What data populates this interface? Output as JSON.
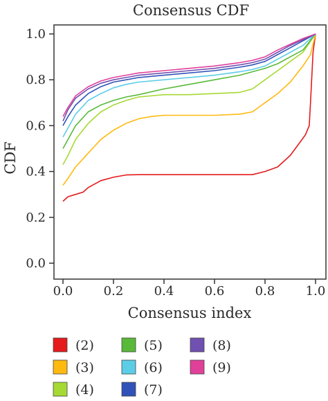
{
  "chart_data": {
    "type": "line",
    "title": "Consensus CDF",
    "xlabel": "Consensus index",
    "ylabel": "CDF",
    "xlim": [
      0,
      1
    ],
    "ylim": [
      0,
      1
    ],
    "xticks": [
      "0.0",
      "0.2",
      "0.4",
      "0.6",
      "0.8",
      "1.0"
    ],
    "yticks": [
      "0.0",
      "0.2",
      "0.4",
      "0.6",
      "0.8",
      "1.0"
    ],
    "grid": false,
    "legend": "bottom",
    "series": [
      {
        "name": "(2)",
        "color": "#e41a1c",
        "x": [
          0.0,
          0.02,
          0.05,
          0.08,
          0.1,
          0.15,
          0.2,
          0.25,
          0.3,
          0.4,
          0.5,
          0.6,
          0.7,
          0.75,
          0.8,
          0.85,
          0.9,
          0.94,
          0.96,
          0.975,
          0.98,
          0.99,
          1.0
        ],
        "y": [
          0.27,
          0.29,
          0.3,
          0.31,
          0.33,
          0.36,
          0.375,
          0.385,
          0.386,
          0.386,
          0.386,
          0.386,
          0.386,
          0.386,
          0.4,
          0.42,
          0.47,
          0.53,
          0.56,
          0.6,
          0.7,
          0.92,
          1.0
        ]
      },
      {
        "name": "(3)",
        "color": "#ffb90f",
        "x": [
          0.0,
          0.02,
          0.05,
          0.1,
          0.15,
          0.2,
          0.25,
          0.3,
          0.35,
          0.4,
          0.5,
          0.6,
          0.7,
          0.75,
          0.8,
          0.85,
          0.9,
          0.95,
          0.98,
          1.0
        ],
        "y": [
          0.34,
          0.37,
          0.42,
          0.48,
          0.54,
          0.58,
          0.61,
          0.63,
          0.64,
          0.645,
          0.645,
          0.645,
          0.65,
          0.66,
          0.7,
          0.74,
          0.79,
          0.86,
          0.91,
          1.0
        ]
      },
      {
        "name": "(4)",
        "color": "#a6d933",
        "x": [
          0.0,
          0.02,
          0.05,
          0.1,
          0.15,
          0.2,
          0.25,
          0.3,
          0.4,
          0.5,
          0.6,
          0.7,
          0.75,
          0.8,
          0.85,
          0.9,
          0.95,
          1.0
        ],
        "y": [
          0.43,
          0.47,
          0.54,
          0.61,
          0.66,
          0.69,
          0.71,
          0.725,
          0.735,
          0.735,
          0.74,
          0.745,
          0.76,
          0.8,
          0.84,
          0.88,
          0.92,
          1.0
        ]
      },
      {
        "name": "(5)",
        "color": "#59b939",
        "x": [
          0.0,
          0.02,
          0.05,
          0.1,
          0.15,
          0.2,
          0.25,
          0.3,
          0.4,
          0.5,
          0.6,
          0.7,
          0.8,
          0.85,
          0.9,
          0.95,
          1.0
        ],
        "y": [
          0.5,
          0.54,
          0.6,
          0.66,
          0.69,
          0.71,
          0.725,
          0.735,
          0.76,
          0.78,
          0.8,
          0.82,
          0.85,
          0.87,
          0.9,
          0.93,
          1.0
        ]
      },
      {
        "name": "(6)",
        "color": "#5ccde6",
        "x": [
          0.0,
          0.02,
          0.05,
          0.1,
          0.15,
          0.2,
          0.25,
          0.3,
          0.4,
          0.5,
          0.6,
          0.7,
          0.75,
          0.8,
          0.85,
          0.9,
          0.95,
          1.0
        ],
        "y": [
          0.55,
          0.59,
          0.65,
          0.71,
          0.74,
          0.765,
          0.78,
          0.79,
          0.8,
          0.81,
          0.82,
          0.835,
          0.845,
          0.86,
          0.89,
          0.92,
          0.95,
          1.0
        ]
      },
      {
        "name": "(7)",
        "color": "#3052b8",
        "x": [
          0.0,
          0.02,
          0.05,
          0.1,
          0.15,
          0.2,
          0.25,
          0.3,
          0.4,
          0.5,
          0.6,
          0.7,
          0.75,
          0.8,
          0.85,
          0.9,
          0.95,
          1.0
        ],
        "y": [
          0.6,
          0.64,
          0.69,
          0.74,
          0.77,
          0.79,
          0.8,
          0.81,
          0.82,
          0.83,
          0.84,
          0.855,
          0.865,
          0.88,
          0.91,
          0.94,
          0.97,
          1.0
        ]
      },
      {
        "name": "(8)",
        "color": "#7050b0",
        "x": [
          0.0,
          0.02,
          0.05,
          0.1,
          0.15,
          0.2,
          0.25,
          0.3,
          0.4,
          0.5,
          0.6,
          0.7,
          0.75,
          0.8,
          0.85,
          0.9,
          0.95,
          1.0
        ],
        "y": [
          0.62,
          0.67,
          0.72,
          0.76,
          0.785,
          0.8,
          0.81,
          0.82,
          0.83,
          0.84,
          0.85,
          0.865,
          0.875,
          0.89,
          0.92,
          0.95,
          0.975,
          1.0
        ]
      },
      {
        "name": "(9)",
        "color": "#e0409a",
        "x": [
          0.0,
          0.02,
          0.05,
          0.1,
          0.15,
          0.2,
          0.25,
          0.3,
          0.4,
          0.5,
          0.6,
          0.7,
          0.75,
          0.8,
          0.85,
          0.9,
          0.95,
          1.0
        ],
        "y": [
          0.64,
          0.68,
          0.73,
          0.77,
          0.795,
          0.81,
          0.82,
          0.83,
          0.84,
          0.85,
          0.86,
          0.875,
          0.885,
          0.9,
          0.93,
          0.955,
          0.98,
          1.0
        ]
      }
    ]
  }
}
